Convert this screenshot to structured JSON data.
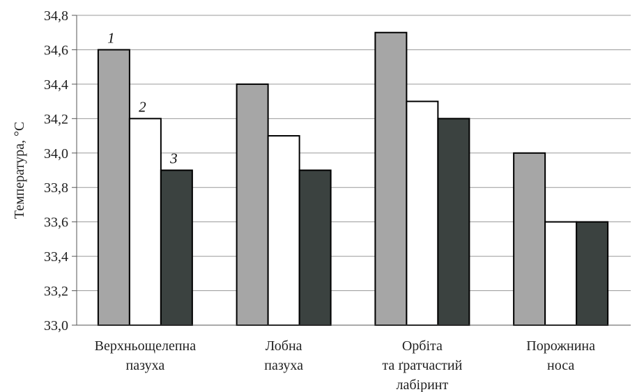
{
  "chart_data": {
    "type": "bar",
    "ylabel": "Температура, °С",
    "ylim": [
      33.0,
      34.8
    ],
    "yticks": [
      "33,0",
      "33,2",
      "33,4",
      "33,6",
      "33,8",
      "34,0",
      "34,2",
      "34,4",
      "34,6",
      "34,8"
    ],
    "ytick_values": [
      33.0,
      33.2,
      33.4,
      33.6,
      33.8,
      34.0,
      34.2,
      34.4,
      34.6,
      34.8
    ],
    "grid": true,
    "categories": [
      [
        "Верхньощелепна",
        "пазуха"
      ],
      [
        "Лобна",
        "пазуха"
      ],
      [
        "Орбіта",
        "та ґратчастий",
        "лабіринт"
      ],
      [
        "Порожнина",
        "носа"
      ]
    ],
    "series": [
      {
        "label": "1",
        "color": "#a6a6a6",
        "values": [
          34.6,
          34.4,
          34.7,
          34.0
        ]
      },
      {
        "label": "2",
        "color": "#ffffff",
        "values": [
          34.2,
          34.1,
          34.3,
          33.6
        ]
      },
      {
        "label": "3",
        "color": "#3b4240",
        "values": [
          33.9,
          33.9,
          34.2,
          33.6
        ]
      }
    ]
  }
}
